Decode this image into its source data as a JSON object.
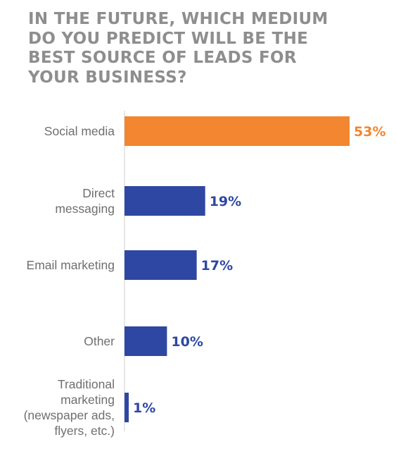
{
  "chart_data": {
    "type": "bar",
    "orientation": "horizontal",
    "title_lines": [
      "IN THE FUTURE, WHICH MEDIUM",
      "DO YOU PREDICT WILL BE THE",
      "BEST SOURCE OF LEADS FOR",
      "YOUR BUSINESS?"
    ],
    "categories": [
      [
        "Social media"
      ],
      [
        "Direct",
        "messaging"
      ],
      [
        "Email marketing"
      ],
      [
        "Other"
      ],
      [
        "Traditional",
        "marketing",
        "(newspaper ads,",
        "flyers, etc.)"
      ]
    ],
    "values": [
      53,
      19,
      17,
      10,
      1
    ],
    "value_labels": [
      "53%",
      "19%",
      "17%",
      "10%",
      "1%"
    ],
    "unit": "%",
    "xlim": [
      0,
      53
    ],
    "grid": false,
    "legend": "none",
    "colors": {
      "highlight": "#f28631",
      "bar": "#2e47a3",
      "axis": "#d0d0d0",
      "title": "#8e8e8e",
      "category_text": "#6f6f6f"
    },
    "highlight_index": 0
  }
}
